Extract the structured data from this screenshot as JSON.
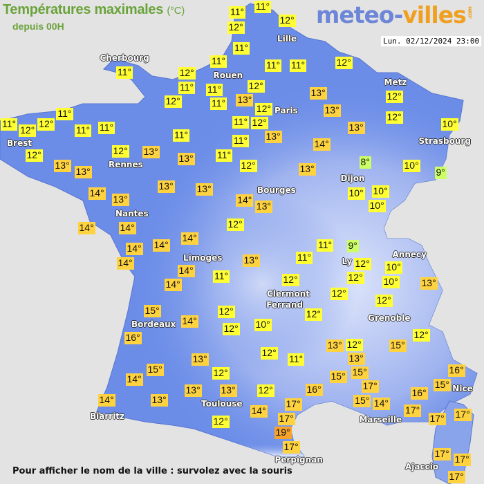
{
  "header": {
    "title": "Températures maximales",
    "unit": "(°C)",
    "subtitle": "depuis 00H",
    "logo_main": "meteo-",
    "logo_accent": "villes",
    "logo_suffix": ".com",
    "date": "Lun. 02/12/2024 23:00"
  },
  "footer": {
    "hint": "Pour afficher le nom de la ville : survolez avec la souris"
  },
  "colors": {
    "background": "#e3e3e3",
    "land": "#6b8de8",
    "label_cold": "#ccff66",
    "label_mild": "#ffff33",
    "label_warm": "#ffd23f",
    "label_hot": "#f5a32a",
    "title": "#6aa33a"
  },
  "cities": [
    "Cherbourg",
    "Lille",
    "Rouen",
    "Paris",
    "Metz",
    "Strasbourg",
    "Brest",
    "Rennes",
    "Dijon",
    "Nantes",
    "Bourges",
    "Limoges",
    "Ly",
    "Annecy",
    "Clermont",
    "Ferrand",
    "Grenoble",
    "Bordeaux",
    "Toulouse",
    "Biarritz",
    "Marseille",
    "Nice",
    "Perpignan",
    "Ajaccio"
  ],
  "temperatures": [
    "11°",
    "11°",
    "12°",
    "12°",
    "11°",
    "11°",
    "11°",
    "11°",
    "12°",
    "12°",
    "11°",
    "12°",
    "11°",
    "12°",
    "11°",
    "13°",
    "13°",
    "12°",
    "12°",
    "13°",
    "11°",
    "11°",
    "11°",
    "12°",
    "12°",
    "11°",
    "11°",
    "11°",
    "12°",
    "13°",
    "13°",
    "12°",
    "10°",
    "11°",
    "11°",
    "14°",
    "12°",
    "12°",
    "13°",
    "13°",
    "11°",
    "12°",
    "13°",
    "13°",
    "13°",
    "8°",
    "10°",
    "9°",
    "14°",
    "13°",
    "13°",
    "13°",
    "14°",
    "13°",
    "10°",
    "10°",
    "10°",
    "14°",
    "14°",
    "12°",
    "14°",
    "14°",
    "14°",
    "11°",
    "9°",
    "14°",
    "13°",
    "11°",
    "12°",
    "10°",
    "14°",
    "11°",
    "12°",
    "12°",
    "10°",
    "13°",
    "14°",
    "12°",
    "12°",
    "15°",
    "12°",
    "12°",
    "14°",
    "12°",
    "10°",
    "16°",
    "12°",
    "12°",
    "11°",
    "13°",
    "12°",
    "13°",
    "13°",
    "15°",
    "15°",
    "12°",
    "15°",
    "15°",
    "14°",
    "13°",
    "13°",
    "12°",
    "16°",
    "17°",
    "15°",
    "16°",
    "16°",
    "15°",
    "14°",
    "14°",
    "13°",
    "17°",
    "14°",
    "17°",
    "17°",
    "17°",
    "12°",
    "17°",
    "19°",
    "17°",
    "17°",
    "17°",
    "17°"
  ]
}
